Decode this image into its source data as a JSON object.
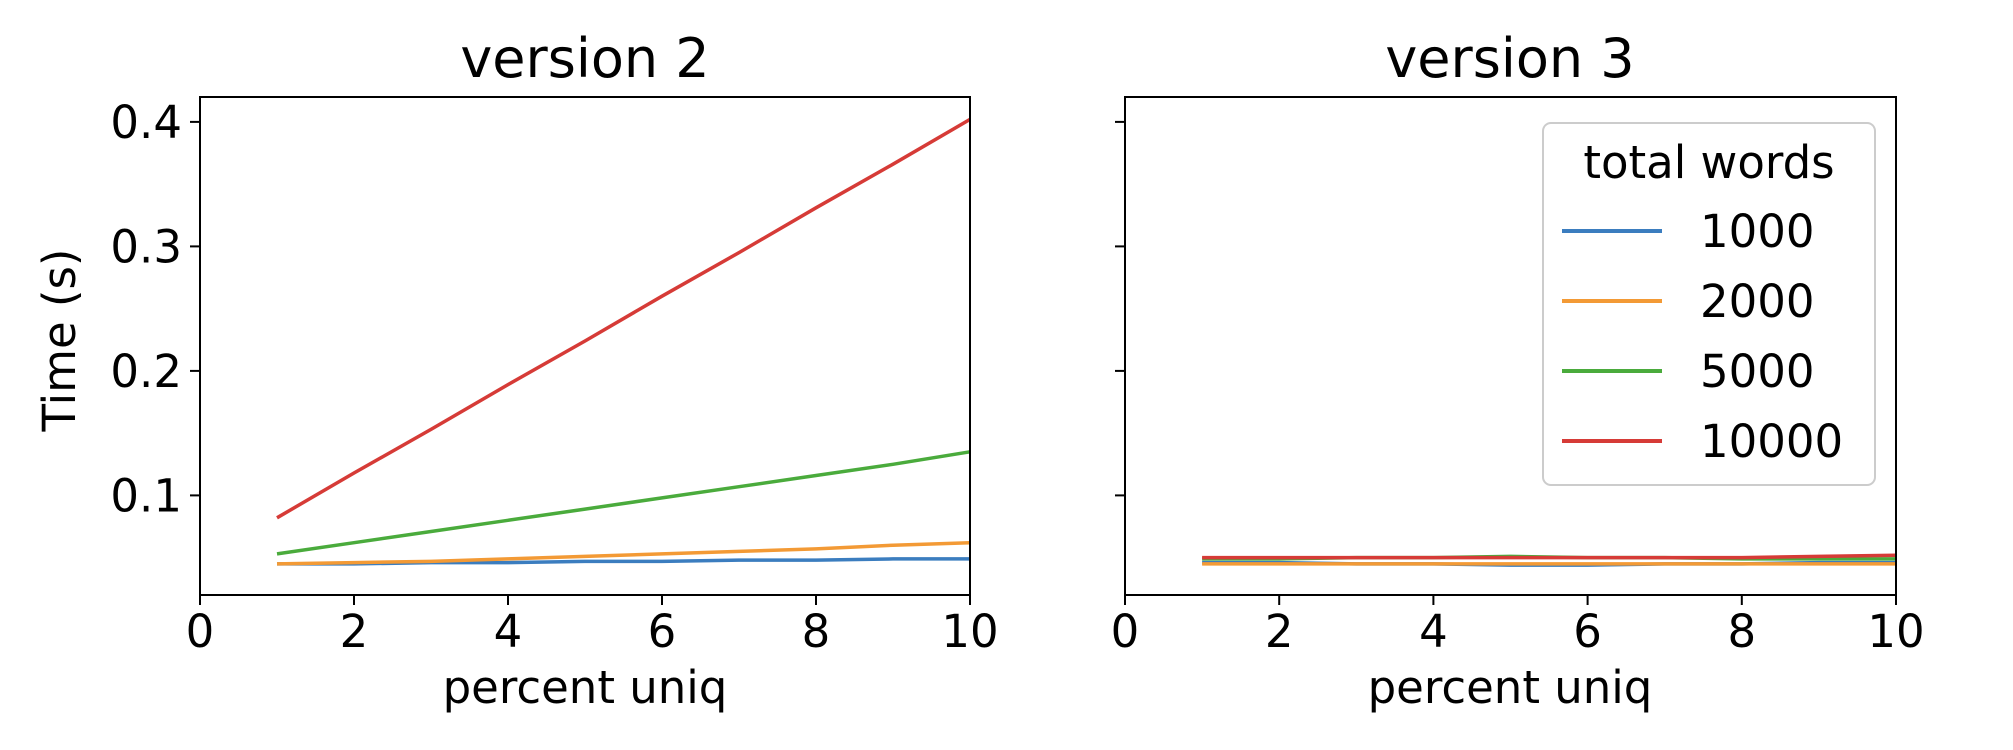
{
  "figure": {
    "ylabel": "Time (s)"
  },
  "legend": {
    "title": "total words",
    "entries": [
      "1000",
      "2000",
      "5000",
      "10000"
    ]
  },
  "colors": {
    "1000": "#3b7dbf",
    "2000": "#f39a35",
    "5000": "#4aab3c",
    "10000": "#d63b37"
  },
  "chart_data": [
    {
      "type": "line",
      "title": "version 2",
      "xlabel": "percent uniq",
      "ylabel": "Time (s)",
      "xlim": [
        0,
        10
      ],
      "ylim": [
        0.02,
        0.42
      ],
      "xticks": [
        0,
        2,
        4,
        6,
        8,
        10
      ],
      "yticks": [
        0.1,
        0.2,
        0.3,
        0.4
      ],
      "x": [
        1,
        2,
        3,
        4,
        5,
        6,
        7,
        8,
        9,
        10
      ],
      "series": [
        {
          "name": "1000",
          "values": [
            0.045,
            0.045,
            0.046,
            0.046,
            0.047,
            0.047,
            0.048,
            0.048,
            0.049,
            0.049
          ]
        },
        {
          "name": "2000",
          "values": [
            0.045,
            0.046,
            0.047,
            0.049,
            0.051,
            0.053,
            0.055,
            0.057,
            0.06,
            0.062
          ]
        },
        {
          "name": "5000",
          "values": [
            0.053,
            0.062,
            0.071,
            0.08,
            0.089,
            0.098,
            0.107,
            0.116,
            0.125,
            0.135
          ]
        },
        {
          "name": "10000",
          "values": [
            0.082,
            0.118,
            0.153,
            0.189,
            0.224,
            0.26,
            0.295,
            0.331,
            0.366,
            0.402
          ]
        }
      ],
      "grid": false
    },
    {
      "type": "line",
      "title": "version 3",
      "xlabel": "percent uniq",
      "xlim": [
        0,
        10
      ],
      "ylim": [
        0.02,
        0.42
      ],
      "xticks": [
        0,
        2,
        4,
        6,
        8,
        10
      ],
      "sharey": true,
      "x": [
        1,
        2,
        3,
        4,
        5,
        6,
        7,
        8,
        9,
        10
      ],
      "series": [
        {
          "name": "1000",
          "values": [
            0.046,
            0.046,
            0.045,
            0.045,
            0.044,
            0.044,
            0.045,
            0.045,
            0.046,
            0.046
          ]
        },
        {
          "name": "2000",
          "values": [
            0.045,
            0.045,
            0.045,
            0.045,
            0.045,
            0.045,
            0.045,
            0.045,
            0.045,
            0.045
          ]
        },
        {
          "name": "5000",
          "values": [
            0.049,
            0.049,
            0.05,
            0.05,
            0.051,
            0.05,
            0.05,
            0.049,
            0.049,
            0.049
          ]
        },
        {
          "name": "10000",
          "values": [
            0.05,
            0.05,
            0.05,
            0.05,
            0.05,
            0.05,
            0.05,
            0.05,
            0.051,
            0.052
          ]
        }
      ],
      "legend_placement": "upper right",
      "grid": false
    }
  ]
}
